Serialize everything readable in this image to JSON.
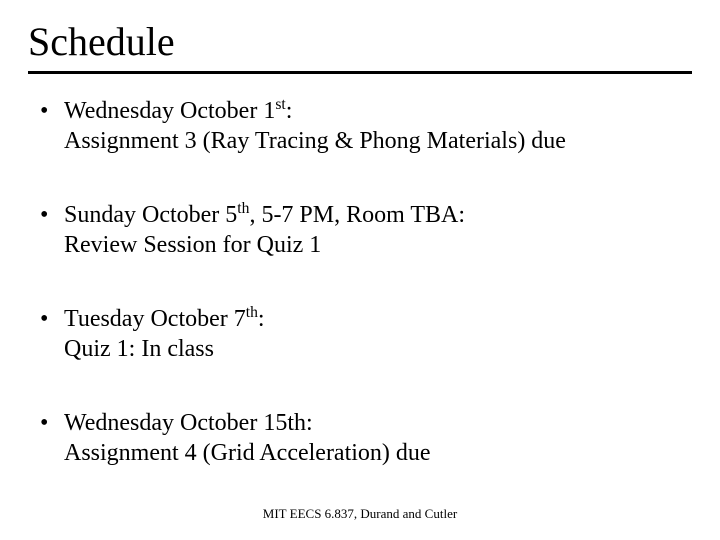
{
  "title": "Schedule",
  "title_fontsize": 40,
  "body_fontsize": 24,
  "footer_fontsize": 13,
  "text_color": "#000000",
  "background_color": "#ffffff",
  "rule_color": "#000000",
  "rule_thickness": 3,
  "font_family": "Times New Roman",
  "items": [
    {
      "date_prefix": "Wednesday October 1",
      "date_ord": "st",
      "date_suffix": ":",
      "detail": "Assignment 3 (Ray Tracing & Phong Materials) due"
    },
    {
      "date_prefix": "Sunday October 5",
      "date_ord": "th",
      "date_suffix": ",  5-7 PM,  Room TBA:",
      "detail": "Review Session for Quiz 1"
    },
    {
      "date_prefix": "Tuesday October 7",
      "date_ord": "th",
      "date_suffix": ":",
      "detail": "Quiz 1: In class"
    },
    {
      "date_prefix": "Wednesday October 15",
      "date_ord": "",
      "date_suffix": "th:",
      "detail": "Assignment 4 (Grid Acceleration) due"
    }
  ],
  "footer": "MIT EECS 6.837, Durand and Cutler"
}
